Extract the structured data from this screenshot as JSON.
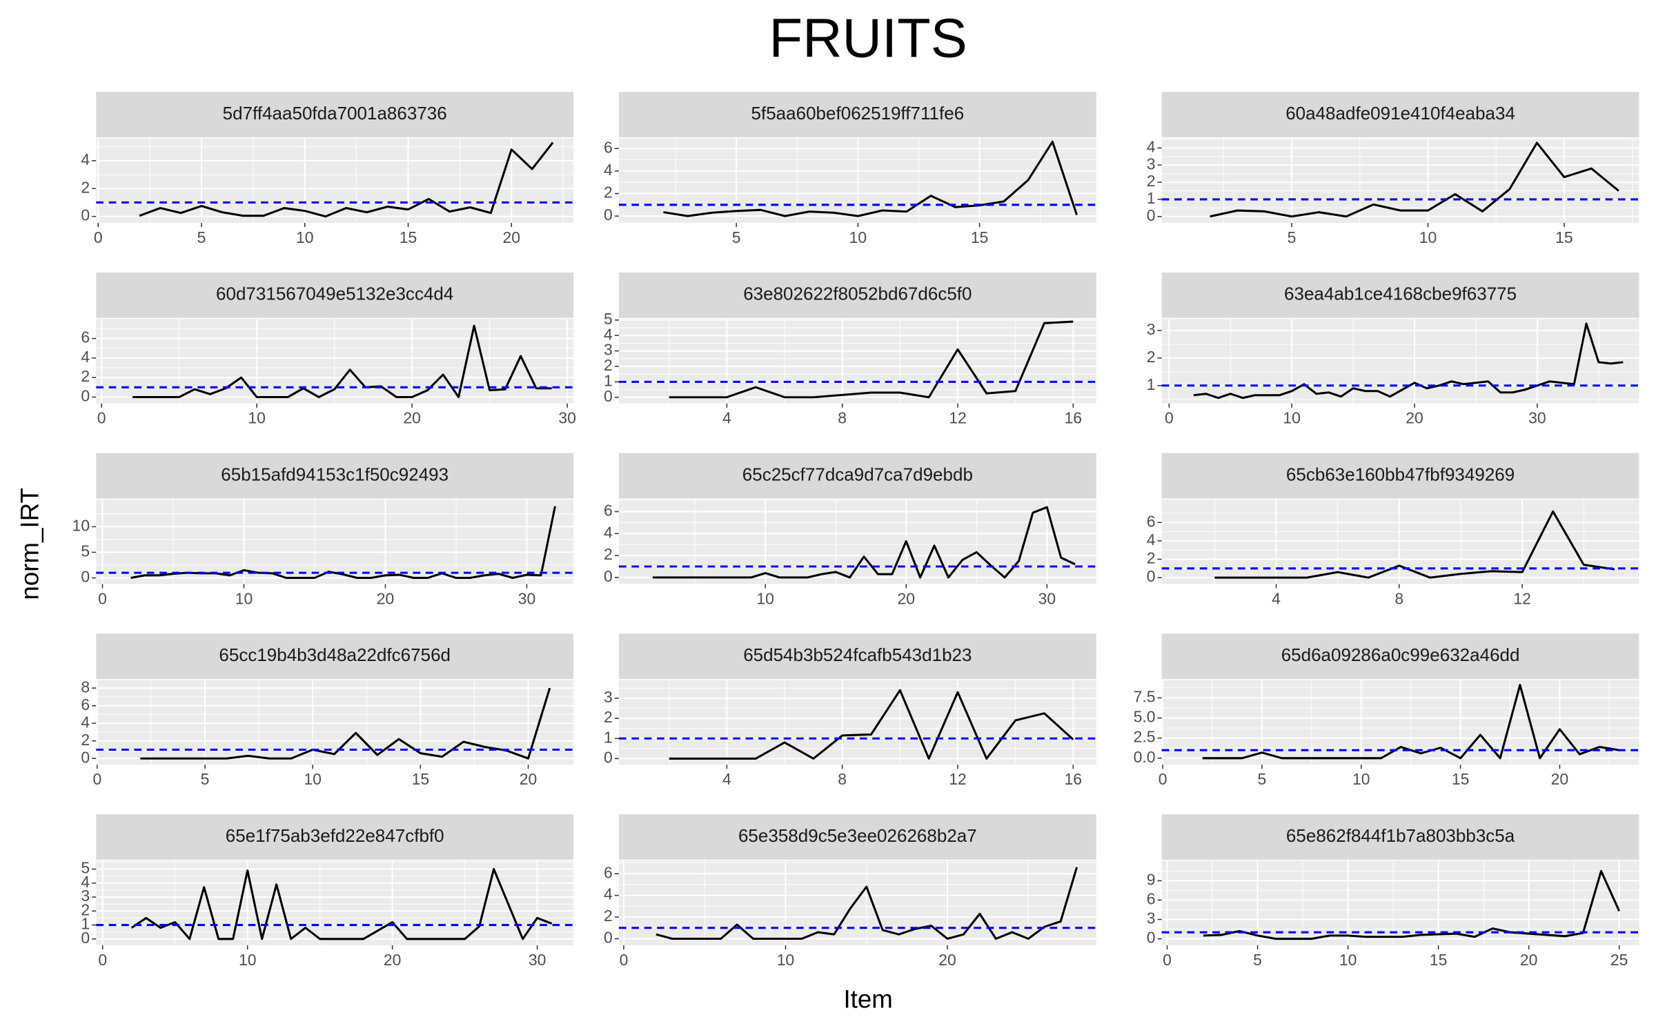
{
  "title": "FRUITS",
  "x_label": "Item",
  "y_label": "norm_IRT",
  "chart_data": [
    {
      "type": "line",
      "title": "5d7ff4aa50fda7001a863736",
      "x": [
        2,
        3,
        4,
        5,
        6,
        7,
        8,
        9,
        10,
        11,
        12,
        13,
        14,
        15,
        16,
        17,
        18,
        19,
        20,
        21,
        22
      ],
      "values": [
        0.05,
        0.6,
        0.25,
        0.75,
        0.3,
        0.05,
        0.05,
        0.6,
        0.4,
        0.0,
        0.6,
        0.3,
        0.7,
        0.5,
        1.25,
        0.35,
        0.65,
        0.25,
        4.8,
        3.4,
        5.3
      ],
      "color": "#000000",
      "reference_line": 1,
      "reference_color": "#0000ff",
      "xlim": [
        -0.1,
        23.0
      ],
      "ylim": [
        -0.46,
        5.6
      ],
      "xticks": [
        0,
        5,
        10,
        15,
        20
      ],
      "yticks": [
        0,
        2,
        4
      ],
      "grid": true
    },
    {
      "type": "line",
      "title": "5f5aa60bef062519ff711fe6",
      "x": [
        2,
        3,
        4,
        5,
        6,
        7,
        8,
        9,
        10,
        11,
        12,
        13,
        14,
        15,
        16,
        17,
        18,
        19
      ],
      "values": [
        0.35,
        0.0,
        0.3,
        0.45,
        0.55,
        0.0,
        0.4,
        0.3,
        0.0,
        0.5,
        0.4,
        1.8,
        0.8,
        0.95,
        1.3,
        3.2,
        6.6,
        0.1
      ],
      "color": "#000000",
      "reference_line": 1,
      "reference_color": "#0000ff",
      "xlim": [
        0.17,
        19.8
      ],
      "ylim": [
        -0.6,
        6.9
      ],
      "xticks": [
        5,
        10,
        15
      ],
      "yticks": [
        0,
        2,
        4,
        6
      ],
      "grid": true
    },
    {
      "type": "line",
      "title": "60a48adfe091e410f4eaba34",
      "x": [
        2,
        3,
        4,
        5,
        6,
        7,
        8,
        9,
        10,
        11,
        12,
        13,
        14,
        15,
        16,
        17
      ],
      "values": [
        0.0,
        0.35,
        0.3,
        0.0,
        0.25,
        0.0,
        0.7,
        0.35,
        0.35,
        1.3,
        0.3,
        1.6,
        4.3,
        2.3,
        2.8,
        1.5
      ],
      "color": "#000000",
      "reference_line": 1,
      "reference_color": "#0000ff",
      "xlim": [
        0.23,
        17.75
      ],
      "ylim": [
        -0.37,
        4.56
      ],
      "xticks": [
        5,
        10,
        15
      ],
      "yticks": [
        0,
        1,
        2,
        3,
        4
      ],
      "grid": true
    },
    {
      "type": "line",
      "title": "60d731567049e5132e3cc4d4",
      "x": [
        2,
        3,
        4,
        5,
        6,
        7,
        8,
        9,
        10,
        11,
        12,
        13,
        14,
        15,
        16,
        17,
        18,
        19,
        20,
        21,
        22,
        23,
        24,
        25,
        26,
        27,
        28,
        29
      ],
      "values": [
        0,
        0,
        0,
        0,
        0.8,
        0.3,
        0.9,
        2.0,
        0,
        0,
        0,
        0.9,
        0,
        0.8,
        2.8,
        1.0,
        1.1,
        0,
        0,
        0.7,
        2.3,
        0,
        7.3,
        0.7,
        0.8,
        4.2,
        0.9,
        0.9
      ],
      "color": "#000000",
      "reference_line": 1,
      "reference_color": "#0000ff",
      "xlim": [
        -0.35,
        30.4
      ],
      "ylim": [
        -0.65,
        8.0
      ],
      "xticks": [
        0,
        10,
        20,
        30
      ],
      "yticks": [
        0,
        2,
        4,
        6
      ],
      "grid": true
    },
    {
      "type": "line",
      "title": "63e802622f8052bd67d6c5f0",
      "x": [
        2,
        3,
        4,
        5,
        6,
        7,
        8,
        9,
        10,
        11,
        12,
        13,
        14,
        15,
        16
      ],
      "values": [
        0,
        0,
        0,
        0.65,
        0,
        0,
        0.15,
        0.3,
        0.3,
        0,
        3.1,
        0.25,
        0.4,
        4.8,
        4.9
      ],
      "color": "#000000",
      "reference_line": 1,
      "reference_color": "#0000ff",
      "xlim": [
        0.26,
        16.8
      ],
      "ylim": [
        -0.4,
        5.07
      ],
      "xticks": [
        4,
        8,
        12,
        16
      ],
      "yticks": [
        0,
        1,
        2,
        3,
        4,
        5
      ],
      "grid": true
    },
    {
      "type": "line",
      "title": "63ea4ab1ce4168cbe9f63775",
      "x": [
        2,
        3,
        4,
        5,
        6,
        7,
        8,
        9,
        10,
        11,
        12,
        13,
        14,
        15,
        16,
        17,
        18,
        19,
        20,
        21,
        22,
        23,
        24,
        25,
        26,
        27,
        28,
        29,
        30,
        31,
        32,
        33,
        34,
        35,
        36,
        37
      ],
      "values": [
        0.65,
        0.7,
        0.55,
        0.7,
        0.55,
        0.65,
        0.65,
        0.65,
        0.8,
        1.05,
        0.7,
        0.75,
        0.6,
        0.9,
        0.8,
        0.8,
        0.6,
        0.85,
        1.1,
        0.9,
        1.0,
        1.15,
        1.05,
        1.1,
        1.15,
        0.75,
        0.75,
        0.85,
        1.0,
        1.15,
        1.1,
        1.05,
        3.25,
        1.85,
        1.8,
        1.85
      ],
      "color": "#000000",
      "reference_line": 1,
      "reference_color": "#0000ff",
      "xlim": [
        -0.6,
        38.3
      ],
      "ylim": [
        0.35,
        3.42
      ],
      "xticks": [
        0,
        10,
        20,
        30
      ],
      "yticks": [
        1,
        2,
        3
      ],
      "grid": true
    },
    {
      "type": "line",
      "title": "65b15afd94153c1f50c92493",
      "x": [
        2,
        3,
        4,
        5,
        6,
        7,
        8,
        9,
        10,
        11,
        12,
        13,
        14,
        15,
        16,
        17,
        18,
        19,
        20,
        21,
        22,
        23,
        24,
        25,
        26,
        27,
        28,
        29,
        30,
        31,
        32
      ],
      "values": [
        0,
        0.5,
        0.5,
        0.8,
        1.0,
        0.9,
        0.9,
        0.5,
        1.5,
        1.0,
        0.9,
        0,
        0,
        0,
        1.2,
        0.7,
        0,
        0,
        0.5,
        0.6,
        0,
        0,
        0.9,
        0,
        0,
        0.5,
        0.8,
        0,
        0.6,
        0.5,
        14
      ],
      "color": "#000000",
      "reference_line": 1,
      "reference_color": "#0000ff",
      "xlim": [
        -0.45,
        33.3
      ],
      "ylim": [
        -1.2,
        15.3
      ],
      "xticks": [
        0,
        10,
        20,
        30
      ],
      "yticks": [
        0,
        5,
        10
      ],
      "grid": true
    },
    {
      "type": "line",
      "title": "65c25cf77dca9d7ca7d9ebdb",
      "x": [
        2,
        3,
        4,
        5,
        6,
        7,
        8,
        9,
        10,
        11,
        12,
        13,
        14,
        15,
        16,
        17,
        18,
        19,
        20,
        21,
        22,
        23,
        24,
        25,
        26,
        27,
        28,
        29,
        30,
        31,
        32
      ],
      "values": [
        0,
        0,
        0,
        0,
        0,
        0,
        0,
        0,
        0.4,
        0,
        0,
        0,
        0.3,
        0.5,
        0,
        1.9,
        0.3,
        0.3,
        3.3,
        0,
        2.9,
        0,
        1.6,
        2.3,
        1.1,
        0,
        1.5,
        5.9,
        6.4,
        1.8,
        1.2
      ],
      "color": "#000000",
      "reference_line": 1,
      "reference_color": "#0000ff",
      "xlim": [
        -0.4,
        33.5
      ],
      "ylim": [
        -0.6,
        7.1
      ],
      "xticks": [
        10,
        20,
        30
      ],
      "yticks": [
        0,
        2,
        4,
        6
      ],
      "grid": true
    },
    {
      "type": "line",
      "title": "65cb63e160bb47fbf9349269",
      "x": [
        2,
        3,
        4,
        5,
        6,
        7,
        8,
        9,
        10,
        11,
        12,
        13,
        14,
        15
      ],
      "values": [
        0,
        0,
        0,
        0,
        0.6,
        0,
        1.3,
        0,
        0.4,
        0.7,
        0.6,
        7.2,
        1.4,
        0.9
      ],
      "color": "#000000",
      "reference_line": 1,
      "reference_color": "#0000ff",
      "xlim": [
        0.28,
        15.8
      ],
      "ylim": [
        -0.7,
        8.5
      ],
      "xticks": [
        4,
        8,
        12
      ],
      "yticks": [
        0,
        2,
        4,
        6
      ],
      "grid": true
    },
    {
      "type": "line",
      "title": "65cc19b4b3d48a22dfc6756d",
      "x": [
        2,
        3,
        4,
        5,
        6,
        7,
        8,
        9,
        10,
        11,
        12,
        13,
        14,
        15,
        16,
        17,
        18,
        19,
        20,
        21
      ],
      "values": [
        0,
        0,
        0,
        0,
        0,
        0.3,
        0,
        0,
        1.0,
        0.5,
        2.9,
        0.4,
        2.2,
        0.6,
        0.2,
        1.9,
        1.3,
        0.9,
        0,
        8.0
      ],
      "color": "#000000",
      "reference_line": 1,
      "reference_color": "#0000ff",
      "xlim": [
        -0.05,
        22.1
      ],
      "ylim": [
        -0.7,
        8.9
      ],
      "xticks": [
        0,
        5,
        10,
        15,
        20
      ],
      "yticks": [
        0,
        2,
        4,
        6,
        8
      ],
      "grid": true
    },
    {
      "type": "line",
      "title": "65d54b3b524fcafb543d1b23",
      "x": [
        2,
        3,
        4,
        5,
        6,
        7,
        8,
        9,
        10,
        11,
        12,
        13,
        14,
        15,
        16
      ],
      "values": [
        0,
        0,
        0,
        0,
        0.8,
        0,
        1.15,
        1.2,
        3.4,
        0,
        3.3,
        0,
        1.9,
        2.25,
        0.95
      ],
      "color": "#000000",
      "reference_line": 1,
      "reference_color": "#0000ff",
      "xlim": [
        0.26,
        16.8
      ],
      "ylim": [
        -0.3,
        3.9
      ],
      "xticks": [
        4,
        8,
        12,
        16
      ],
      "yticks": [
        0,
        1,
        2,
        3
      ],
      "grid": true
    },
    {
      "type": "line",
      "title": "65d6a09286a0c99e632a46dd",
      "x": [
        2,
        3,
        4,
        5,
        6,
        7,
        8,
        9,
        10,
        11,
        12,
        13,
        14,
        15,
        16,
        17,
        18,
        19,
        20,
        21,
        22,
        23
      ],
      "values": [
        0,
        0,
        0,
        0.7,
        0,
        0,
        0,
        0,
        0,
        0,
        1.4,
        0.6,
        1.3,
        0,
        2.9,
        0,
        9.1,
        0,
        3.6,
        0.5,
        1.4,
        1.0
      ],
      "color": "#000000",
      "reference_line": 1,
      "reference_color": "#0000ff",
      "xlim": [
        -0.05,
        24.0
      ],
      "ylim": [
        -0.8,
        9.7
      ],
      "xticks": [
        0,
        5,
        10,
        15,
        20
      ],
      "yticks": [
        {
          "value": 0,
          "label": "0.0"
        },
        {
          "value": 2.5,
          "label": "2.5"
        },
        {
          "value": 5,
          "label": "5.0"
        },
        {
          "value": 7.5,
          "label": "7.5"
        }
      ],
      "grid": true
    },
    {
      "type": "line",
      "title": "65e1f75ab3efd22e847cfbf0",
      "x": [
        2,
        3,
        4,
        5,
        6,
        7,
        8,
        9,
        10,
        11,
        12,
        13,
        14,
        15,
        16,
        17,
        18,
        19,
        20,
        21,
        22,
        23,
        24,
        25,
        26,
        27,
        28,
        29,
        30,
        31
      ],
      "values": [
        0.8,
        1.5,
        0.8,
        1.2,
        0,
        3.7,
        0,
        0,
        4.9,
        0,
        3.9,
        0,
        0.8,
        0,
        0,
        0,
        0,
        0.6,
        1.2,
        0,
        0,
        0,
        0,
        0,
        0.9,
        5.0,
        2.5,
        0,
        1.5,
        1.1
      ],
      "color": "#000000",
      "reference_line": 1,
      "reference_color": "#0000ff",
      "xlim": [
        -0.45,
        32.5
      ],
      "ylim": [
        -0.45,
        5.6
      ],
      "xticks": [
        0,
        10,
        20,
        30
      ],
      "yticks": [
        0,
        1,
        2,
        3,
        4,
        5
      ],
      "grid": true
    },
    {
      "type": "line",
      "title": "65e358d9c5e3ee026268b2a7",
      "x": [
        2,
        3,
        4,
        5,
        6,
        7,
        8,
        9,
        10,
        11,
        12,
        13,
        14,
        15,
        16,
        17,
        18,
        19,
        20,
        21,
        22,
        23,
        24,
        25,
        26,
        27,
        28
      ],
      "values": [
        0.4,
        0,
        0,
        0,
        0,
        1.3,
        0,
        0,
        0,
        0,
        0.6,
        0.4,
        2.8,
        4.8,
        0.8,
        0.4,
        0.9,
        1.2,
        0,
        0.4,
        2.3,
        0,
        0.6,
        0,
        1.1,
        1.6,
        6.6
      ],
      "color": "#000000",
      "reference_line": 1,
      "reference_color": "#0000ff",
      "xlim": [
        -0.3,
        29.2
      ],
      "ylim": [
        -0.6,
        7.2
      ],
      "xticks": [
        0,
        10,
        20
      ],
      "yticks": [
        0,
        2,
        4,
        6
      ],
      "grid": true
    },
    {
      "type": "line",
      "title": "65e862f844f1b7a803bb3c5a",
      "x": [
        2,
        3,
        4,
        5,
        6,
        7,
        8,
        9,
        10,
        11,
        12,
        13,
        14,
        15,
        16,
        17,
        18,
        19,
        20,
        21,
        22,
        23,
        24,
        25
      ],
      "values": [
        0.5,
        0.6,
        1.2,
        0.5,
        0,
        0,
        0,
        0.5,
        0.5,
        0.3,
        0.3,
        0.3,
        0.6,
        0.7,
        0.8,
        0.3,
        1.6,
        1.0,
        0.8,
        0.6,
        0.4,
        0.9,
        10.5,
        4.3
      ],
      "color": "#000000",
      "reference_line": 1,
      "reference_color": "#0000ff",
      "xlim": [
        -0.3,
        26.1
      ],
      "ylim": [
        -1.0,
        12.1
      ],
      "xticks": [
        0,
        5,
        10,
        15,
        20,
        25
      ],
      "yticks": [
        0,
        3,
        6,
        9
      ],
      "grid": true
    }
  ]
}
